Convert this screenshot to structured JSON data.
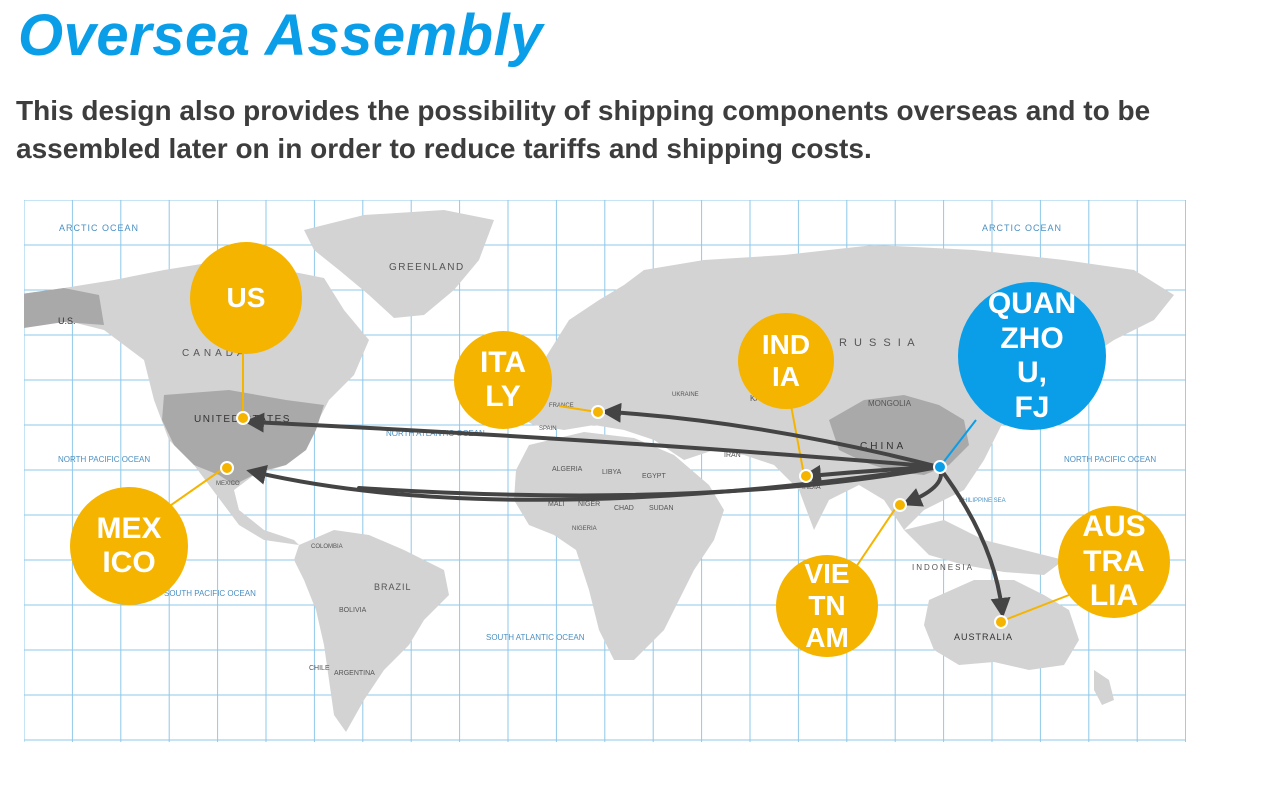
{
  "slide": {
    "title": "Oversea Assembly",
    "subtitle": "This design also provides the possibility of shipping components overseas and to be assembled later on in order to reduce tariffs and shipping costs."
  },
  "map": {
    "labels": {
      "arctic_left": "ARCTIC OCEAN",
      "arctic_right": "ARCTIC OCEAN",
      "greenland": "GREENLAND",
      "canada": "CANADA",
      "us_state": "UNITED STATES",
      "us_abbr": "U.S.",
      "north_pacific_left": "NORTH PACIFIC OCEAN",
      "north_pacific_right": "NORTH PACIFIC OCEAN",
      "north_atlantic": "NORTH ATLANTIC OCEAN",
      "south_pacific": "SOUTH PACIFIC OCEAN",
      "south_atlantic": "SOUTH ATLANTIC OCEAN",
      "brazil": "BRAZIL",
      "bolivia": "BOLIVIA",
      "argentina": "ARGENTINA",
      "chile": "CHILE",
      "colombia": "COLOMBIA",
      "mexico_city": "MEXICO",
      "algeria": "ALGERIA",
      "libya": "LIBYA",
      "egypt": "EGYPT",
      "mali": "MALI",
      "niger": "NIGER",
      "chad": "CHAD",
      "sudan": "SUDAN",
      "nigeria": "NIGERIA",
      "iran": "IRAN",
      "india_map": "INDIA",
      "china": "CHINA",
      "mongolia": "MONGOLIA",
      "russia": "R U S S I A",
      "kazakhstan": "KAZ",
      "indonesia": "INDONESIA",
      "australia_map": "AUSTRALIA",
      "philippine_sea": "PHILIPPINE SEA",
      "france": "FRANCE",
      "spain": "SPAIN",
      "ukraine": "UKRAINE"
    },
    "colors": {
      "ocean": "#ffffff",
      "grid": "#8fc8e8",
      "land": "#d3d3d3",
      "land_highlight": "#a9a9a9",
      "arrow": "#444444"
    }
  },
  "locations": {
    "us": "US",
    "italy": "ITA\nLY",
    "india": "IND\nIA",
    "quanzhou": "QUAN\nZHO\nU,\nFJ",
    "mexico": "MEX\nICO",
    "vietnam": "VIE\nTN\nAM",
    "australia": "AUS\nTRA\nLIA"
  },
  "colors": {
    "title": "#0a9ee8",
    "bubble_orange": "#f5b400",
    "bubble_blue": "#0a9ee8",
    "subtitle": "#3d3d3d"
  }
}
